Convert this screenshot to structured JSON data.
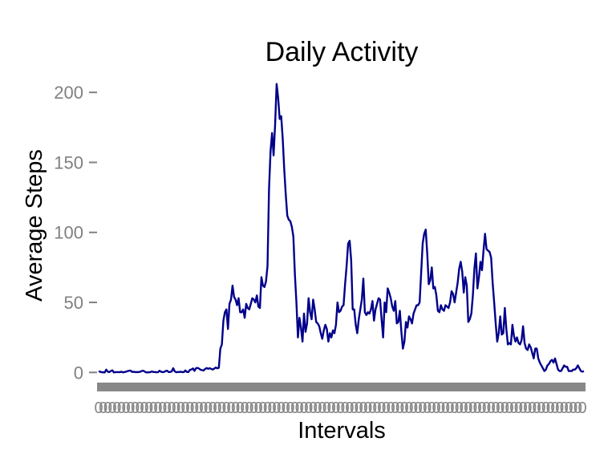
{
  "chart_data": {
    "type": "line",
    "title": "Daily Activity",
    "xlabel": "Intervals",
    "ylabel": "Average Steps",
    "ylim": [
      -13,
      215
    ],
    "yticks": [
      0,
      50,
      100,
      150,
      200
    ],
    "grid": false,
    "line_color": "#00008B",
    "x_tick_color": "#888888",
    "series": [
      {
        "values": [
          0.8,
          0.5,
          0.1,
          0.1,
          0.0,
          2.0,
          0.5,
          0.2,
          1.0,
          1.5,
          0.0,
          0.2,
          0.2,
          0.2,
          0.2,
          0.5,
          0.0,
          0.3,
          0.5,
          0.9,
          1.2,
          1.3,
          0.3,
          0.5,
          0.2,
          0.3,
          0.2,
          0.4,
          0.8,
          1.3,
          0.8,
          0.1,
          0.0,
          0.1,
          0.2,
          0.7,
          0.3,
          0.3,
          0.1,
          0.2,
          1.2,
          0.5,
          0.2,
          0.3,
          1.0,
          1.2,
          0.3,
          0.3,
          0.7,
          3.0,
          0.8,
          0.1,
          0.3,
          0.3,
          0.5,
          0.2,
          0.2,
          1.4,
          0.3,
          0.3,
          1.8,
          2.1,
          2.8,
          1.1,
          3.0,
          3.2,
          2.7,
          1.9,
          1.6,
          1.4,
          2.5,
          3.1,
          2.6,
          3.0,
          2.5,
          2.1,
          2.7,
          3.5,
          2.9,
          3.3,
          17.0,
          20.0,
          37.0,
          43.0,
          45.0,
          31.0,
          49.0,
          52.0,
          62.0,
          54.0,
          52.0,
          48.0,
          53.0,
          43.0,
          43.0,
          45.0,
          39.0,
          49.0,
          46.0,
          45.0,
          49.0,
          53.0,
          52.0,
          50.0,
          55.0,
          47.0,
          46.0,
          68.0,
          62.0,
          61.0,
          65.0,
          76.0,
          131.0,
          158.0,
          171.0,
          155.0,
          177.0,
          206.0,
          196.0,
          181.0,
          183.0,
          167.0,
          145.0,
          127.0,
          112.0,
          109.0,
          108.0,
          104.0,
          97.0,
          70.0,
          50.0,
          25.0,
          39.0,
          32.0,
          22.0,
          42.0,
          29.0,
          35.0,
          53.0,
          43.0,
          38.0,
          52.0,
          45.0,
          36.0,
          35.0,
          33.0,
          28.0,
          24.0,
          30.0,
          34.0,
          31.0,
          22.0,
          28.0,
          25.0,
          30.0,
          28.0,
          34.0,
          50.0,
          43.0,
          44.0,
          47.0,
          48.0,
          63.0,
          76.0,
          92.0,
          94.0,
          80.0,
          45.0,
          45.0,
          34.0,
          28.0,
          38.0,
          45.0,
          52.0,
          67.0,
          43.0,
          41.0,
          43.0,
          42.0,
          45.0,
          51.0,
          37.0,
          45.0,
          49.0,
          53.0,
          52.0,
          38.0,
          25.0,
          50.0,
          43.0,
          60.0,
          57.0,
          53.0,
          47.0,
          44.0,
          51.0,
          35.0,
          36.0,
          44.0,
          29.0,
          17.0,
          22.0,
          36.0,
          32.0,
          40.0,
          38.0,
          35.0,
          42.0,
          45.0,
          48.0,
          48.0,
          50.0,
          71.0,
          92.0,
          99.0,
          102.0,
          85.0,
          63.0,
          66.0,
          75.0,
          60.0,
          61.0,
          55.0,
          44.0,
          43.0,
          48.0,
          45.0,
          44.0,
          48.0,
          47.0,
          46.0,
          50.0,
          58.0,
          56.0,
          50.0,
          57.0,
          64.0,
          74.0,
          79.0,
          72.0,
          57.0,
          68.0,
          62.0,
          36.0,
          38.0,
          42.0,
          55.0,
          74.0,
          85.0,
          60.0,
          68.0,
          79.0,
          73.0,
          87.0,
          99.0,
          88.0,
          87.0,
          86.0,
          82.0,
          64.0,
          50.0,
          35.0,
          22.0,
          28.0,
          40.0,
          27.0,
          28.0,
          46.0,
          31.0,
          20.0,
          21.0,
          20.0,
          34.0,
          26.0,
          22.0,
          25.0,
          21.0,
          20.0,
          23.0,
          33.0,
          21.0,
          17.0,
          16.0,
          20.0,
          18.0,
          14.0,
          10.0,
          17.0,
          17.0,
          10.0,
          7.0,
          5.0,
          3.0,
          1.0,
          2.0,
          5.0,
          6.0,
          8.0,
          9.0,
          7.0,
          10.0,
          6.0,
          2.0,
          1.0,
          1.0,
          3.0,
          5.0,
          4.0,
          4.0,
          1.0,
          1.0,
          1.0,
          2.0,
          2.0,
          3.0,
          5.0,
          3.0,
          1.0,
          0.5,
          0.9
        ]
      }
    ]
  }
}
